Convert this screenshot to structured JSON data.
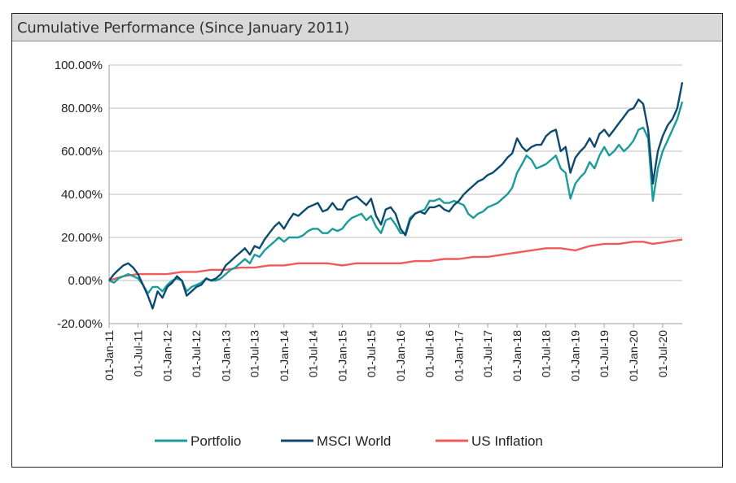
{
  "chart_data": {
    "type": "line",
    "title": "Cumulative Performance (Since January 2011)",
    "xlabel": "",
    "ylabel": "",
    "ylim": [
      -20,
      100
    ],
    "y_ticks": [
      -20,
      0,
      20,
      40,
      60,
      80,
      100
    ],
    "y_tick_labels": [
      "-20.00%",
      "0.00%",
      "20.00%",
      "40.00%",
      "60.00%",
      "80.00%",
      "100.00%"
    ],
    "x_tick_labels": [
      "01-Jan-11",
      "01-Jul-11",
      "01-Jan-12",
      "01-Jul-12",
      "01-Jan-13",
      "01-Jul-13",
      "01-Jan-14",
      "01-Jul-14",
      "01-Jan-15",
      "01-Jul-15",
      "01-Jan-16",
      "01-Jul-16",
      "01-Jan-17",
      "01-Jul-17",
      "01-Jan-18",
      "01-Jul-18",
      "01-Jan-19",
      "01-Jul-19",
      "01-Jan-20",
      "01-Jul-20"
    ],
    "grid": true,
    "legend": "bottom",
    "series": [
      {
        "name": "Portfolio",
        "color": "#1a9c9a",
        "points": [
          [
            "2011-01",
            0
          ],
          [
            "2011-02",
            -1
          ],
          [
            "2011-03",
            1
          ],
          [
            "2011-04",
            2
          ],
          [
            "2011-05",
            3
          ],
          [
            "2011-06",
            2
          ],
          [
            "2011-07",
            1
          ],
          [
            "2011-08",
            -2
          ],
          [
            "2011-09",
            -6
          ],
          [
            "2011-10",
            -3
          ],
          [
            "2011-11",
            -3
          ],
          [
            "2011-12",
            -5
          ],
          [
            "2012-01",
            -2
          ],
          [
            "2012-02",
            0
          ],
          [
            "2012-03",
            1
          ],
          [
            "2012-04",
            0
          ],
          [
            "2012-05",
            -5
          ],
          [
            "2012-06",
            -3
          ],
          [
            "2012-07",
            -2
          ],
          [
            "2012-08",
            -1
          ],
          [
            "2012-09",
            1
          ],
          [
            "2012-10",
            0
          ],
          [
            "2012-11",
            0
          ],
          [
            "2012-12",
            1
          ],
          [
            "2013-01",
            3
          ],
          [
            "2013-02",
            5
          ],
          [
            "2013-03",
            6
          ],
          [
            "2013-04",
            8
          ],
          [
            "2013-05",
            10
          ],
          [
            "2013-06",
            8
          ],
          [
            "2013-07",
            12
          ],
          [
            "2013-08",
            11
          ],
          [
            "2013-09",
            14
          ],
          [
            "2013-10",
            16
          ],
          [
            "2013-11",
            18
          ],
          [
            "2013-12",
            20
          ],
          [
            "2014-01",
            18
          ],
          [
            "2014-02",
            20
          ],
          [
            "2014-03",
            20
          ],
          [
            "2014-04",
            20
          ],
          [
            "2014-05",
            21
          ],
          [
            "2014-06",
            23
          ],
          [
            "2014-07",
            24
          ],
          [
            "2014-08",
            24
          ],
          [
            "2014-09",
            22
          ],
          [
            "2014-10",
            22
          ],
          [
            "2014-11",
            24
          ],
          [
            "2014-12",
            23
          ],
          [
            "2015-01",
            24
          ],
          [
            "2015-02",
            27
          ],
          [
            "2015-03",
            29
          ],
          [
            "2015-04",
            30
          ],
          [
            "2015-05",
            31
          ],
          [
            "2015-06",
            28
          ],
          [
            "2015-07",
            30
          ],
          [
            "2015-08",
            25
          ],
          [
            "2015-09",
            22
          ],
          [
            "2015-10",
            28
          ],
          [
            "2015-11",
            29
          ],
          [
            "2015-12",
            26
          ],
          [
            "2016-01",
            22
          ],
          [
            "2016-02",
            22
          ],
          [
            "2016-03",
            29
          ],
          [
            "2016-04",
            31
          ],
          [
            "2016-05",
            32
          ],
          [
            "2016-06",
            33
          ],
          [
            "2016-07",
            37
          ],
          [
            "2016-08",
            37
          ],
          [
            "2016-09",
            38
          ],
          [
            "2016-10",
            36
          ],
          [
            "2016-11",
            36
          ],
          [
            "2016-12",
            37
          ],
          [
            "2017-01",
            36
          ],
          [
            "2017-02",
            35
          ],
          [
            "2017-03",
            31
          ],
          [
            "2017-04",
            29
          ],
          [
            "2017-05",
            31
          ],
          [
            "2017-06",
            32
          ],
          [
            "2017-07",
            34
          ],
          [
            "2017-08",
            35
          ],
          [
            "2017-09",
            36
          ],
          [
            "2017-10",
            38
          ],
          [
            "2017-11",
            40
          ],
          [
            "2017-12",
            43
          ],
          [
            "2018-01",
            50
          ],
          [
            "2018-02",
            54
          ],
          [
            "2018-03",
            58
          ],
          [
            "2018-04",
            56
          ],
          [
            "2018-05",
            52
          ],
          [
            "2018-06",
            53
          ],
          [
            "2018-07",
            54
          ],
          [
            "2018-08",
            56
          ],
          [
            "2018-09",
            58
          ],
          [
            "2018-10",
            52
          ],
          [
            "2018-11",
            50
          ],
          [
            "2018-12",
            38
          ],
          [
            "2019-01",
            45
          ],
          [
            "2019-02",
            48
          ],
          [
            "2019-03",
            50
          ],
          [
            "2019-04",
            55
          ],
          [
            "2019-05",
            52
          ],
          [
            "2019-06",
            58
          ],
          [
            "2019-07",
            62
          ],
          [
            "2019-08",
            58
          ],
          [
            "2019-09",
            60
          ],
          [
            "2019-10",
            63
          ],
          [
            "2019-11",
            60
          ],
          [
            "2019-12",
            62
          ],
          [
            "2020-01",
            65
          ],
          [
            "2020-02",
            70
          ],
          [
            "2020-03",
            71
          ],
          [
            "2020-04",
            66
          ],
          [
            "2020-05",
            37
          ],
          [
            "2020-06",
            52
          ],
          [
            "2020-07",
            60
          ],
          [
            "2020-08",
            65
          ],
          [
            "2020-09",
            70
          ],
          [
            "2020-10",
            75
          ],
          [
            "2020-11",
            83
          ]
        ]
      },
      {
        "name": "MSCI World",
        "color": "#0d4a6e",
        "points": [
          [
            "2011-01",
            0
          ],
          [
            "2011-02",
            3
          ],
          [
            "2011-03",
            5
          ],
          [
            "2011-04",
            7
          ],
          [
            "2011-05",
            8
          ],
          [
            "2011-06",
            6
          ],
          [
            "2011-07",
            3
          ],
          [
            "2011-08",
            -2
          ],
          [
            "2011-09",
            -7
          ],
          [
            "2011-10",
            -13
          ],
          [
            "2011-11",
            -5
          ],
          [
            "2011-12",
            -8
          ],
          [
            "2012-01",
            -3
          ],
          [
            "2012-02",
            -1
          ],
          [
            "2012-03",
            2
          ],
          [
            "2012-04",
            0
          ],
          [
            "2012-05",
            -7
          ],
          [
            "2012-06",
            -5
          ],
          [
            "2012-07",
            -3
          ],
          [
            "2012-08",
            -2
          ],
          [
            "2012-09",
            1
          ],
          [
            "2012-10",
            0
          ],
          [
            "2012-11",
            1
          ],
          [
            "2012-12",
            3
          ],
          [
            "2013-01",
            7
          ],
          [
            "2013-02",
            9
          ],
          [
            "2013-03",
            11
          ],
          [
            "2013-04",
            13
          ],
          [
            "2013-05",
            15
          ],
          [
            "2013-06",
            12
          ],
          [
            "2013-07",
            16
          ],
          [
            "2013-08",
            15
          ],
          [
            "2013-09",
            19
          ],
          [
            "2013-10",
            22
          ],
          [
            "2013-11",
            25
          ],
          [
            "2013-12",
            27
          ],
          [
            "2014-01",
            24
          ],
          [
            "2014-02",
            28
          ],
          [
            "2014-03",
            31
          ],
          [
            "2014-04",
            30
          ],
          [
            "2014-05",
            32
          ],
          [
            "2014-06",
            34
          ],
          [
            "2014-07",
            35
          ],
          [
            "2014-08",
            36
          ],
          [
            "2014-09",
            32
          ],
          [
            "2014-10",
            33
          ],
          [
            "2014-11",
            36
          ],
          [
            "2014-12",
            33
          ],
          [
            "2015-01",
            33
          ],
          [
            "2015-02",
            37
          ],
          [
            "2015-03",
            38
          ],
          [
            "2015-04",
            39
          ],
          [
            "2015-05",
            37
          ],
          [
            "2015-06",
            35
          ],
          [
            "2015-07",
            38
          ],
          [
            "2015-08",
            30
          ],
          [
            "2015-09",
            26
          ],
          [
            "2015-10",
            33
          ],
          [
            "2015-11",
            34
          ],
          [
            "2015-12",
            31
          ],
          [
            "2016-01",
            24
          ],
          [
            "2016-02",
            21
          ],
          [
            "2016-03",
            28
          ],
          [
            "2016-04",
            31
          ],
          [
            "2016-05",
            32
          ],
          [
            "2016-06",
            31
          ],
          [
            "2016-07",
            34
          ],
          [
            "2016-08",
            34
          ],
          [
            "2016-09",
            35
          ],
          [
            "2016-10",
            33
          ],
          [
            "2016-11",
            32
          ],
          [
            "2016-12",
            35
          ],
          [
            "2017-01",
            37
          ],
          [
            "2017-02",
            40
          ],
          [
            "2017-03",
            42
          ],
          [
            "2017-04",
            44
          ],
          [
            "2017-05",
            46
          ],
          [
            "2017-06",
            47
          ],
          [
            "2017-07",
            49
          ],
          [
            "2017-08",
            50
          ],
          [
            "2017-09",
            52
          ],
          [
            "2017-10",
            54
          ],
          [
            "2017-11",
            57
          ],
          [
            "2017-12",
            59
          ],
          [
            "2018-01",
            66
          ],
          [
            "2018-02",
            62
          ],
          [
            "2018-03",
            60
          ],
          [
            "2018-04",
            62
          ],
          [
            "2018-05",
            63
          ],
          [
            "2018-06",
            63
          ],
          [
            "2018-07",
            67
          ],
          [
            "2018-08",
            69
          ],
          [
            "2018-09",
            70
          ],
          [
            "2018-10",
            60
          ],
          [
            "2018-11",
            62
          ],
          [
            "2018-12",
            50
          ],
          [
            "2019-01",
            57
          ],
          [
            "2019-02",
            60
          ],
          [
            "2019-03",
            62
          ],
          [
            "2019-04",
            66
          ],
          [
            "2019-05",
            62
          ],
          [
            "2019-06",
            68
          ],
          [
            "2019-07",
            70
          ],
          [
            "2019-08",
            67
          ],
          [
            "2019-09",
            70
          ],
          [
            "2019-10",
            73
          ],
          [
            "2019-11",
            76
          ],
          [
            "2019-12",
            79
          ],
          [
            "2020-01",
            80
          ],
          [
            "2020-02",
            84
          ],
          [
            "2020-03",
            82
          ],
          [
            "2020-04",
            70
          ],
          [
            "2020-05",
            45
          ],
          [
            "2020-06",
            60
          ],
          [
            "2020-07",
            67
          ],
          [
            "2020-08",
            72
          ],
          [
            "2020-09",
            75
          ],
          [
            "2020-10",
            80
          ],
          [
            "2020-11",
            92
          ]
        ]
      },
      {
        "name": "US Inflation",
        "color": "#f05a5a",
        "points": [
          [
            "2011-01",
            0
          ],
          [
            "2011-04",
            2
          ],
          [
            "2011-07",
            3
          ],
          [
            "2011-10",
            3
          ],
          [
            "2012-01",
            3
          ],
          [
            "2012-04",
            4
          ],
          [
            "2012-07",
            4
          ],
          [
            "2012-10",
            5
          ],
          [
            "2013-01",
            5
          ],
          [
            "2013-04",
            6
          ],
          [
            "2013-07",
            6
          ],
          [
            "2013-10",
            7
          ],
          [
            "2014-01",
            7
          ],
          [
            "2014-04",
            8
          ],
          [
            "2014-07",
            8
          ],
          [
            "2014-10",
            8
          ],
          [
            "2015-01",
            7
          ],
          [
            "2015-04",
            8
          ],
          [
            "2015-07",
            8
          ],
          [
            "2015-10",
            8
          ],
          [
            "2016-01",
            8
          ],
          [
            "2016-04",
            9
          ],
          [
            "2016-07",
            9
          ],
          [
            "2016-10",
            10
          ],
          [
            "2017-01",
            10
          ],
          [
            "2017-04",
            11
          ],
          [
            "2017-07",
            11
          ],
          [
            "2017-10",
            12
          ],
          [
            "2018-01",
            13
          ],
          [
            "2018-04",
            14
          ],
          [
            "2018-07",
            15
          ],
          [
            "2018-10",
            15
          ],
          [
            "2019-01",
            14
          ],
          [
            "2019-04",
            16
          ],
          [
            "2019-07",
            17
          ],
          [
            "2019-10",
            17
          ],
          [
            "2020-01",
            18
          ],
          [
            "2020-03",
            18
          ],
          [
            "2020-05",
            17
          ],
          [
            "2020-08",
            18
          ],
          [
            "2020-11",
            19
          ]
        ]
      }
    ]
  }
}
